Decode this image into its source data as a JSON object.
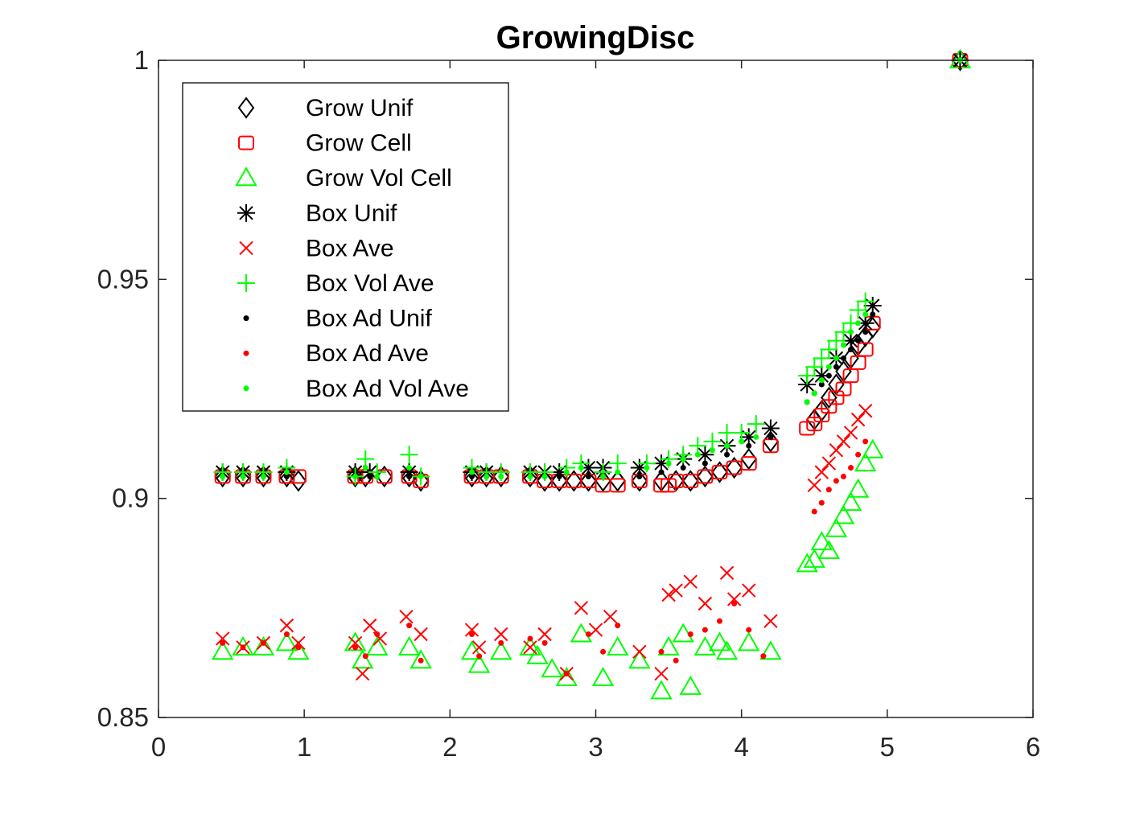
{
  "chart_data": {
    "type": "scatter",
    "title": "GrowingDisc",
    "xlabel": "",
    "ylabel": "",
    "xlim": [
      0,
      6
    ],
    "ylim": [
      0.85,
      1.0
    ],
    "xticks": [
      0,
      1,
      2,
      3,
      4,
      5,
      6
    ],
    "yticks": [
      0.85,
      0.9,
      0.95,
      1
    ],
    "xtick_labels": [
      "0",
      "1",
      "2",
      "3",
      "4",
      "5",
      "6"
    ],
    "ytick_labels": [
      "0.85",
      "0.9",
      "0.95",
      "1"
    ],
    "grid": false,
    "legend_position": "top-left",
    "series": [
      {
        "name": "Grow Unif",
        "marker": "diamond",
        "color": "#000000",
        "x": [
          0.44,
          0.58,
          0.72,
          0.88,
          0.96,
          1.35,
          1.42,
          1.55,
          1.72,
          1.8,
          2.15,
          2.25,
          2.35,
          2.55,
          2.65,
          2.75,
          2.85,
          2.95,
          3.05,
          3.15,
          3.3,
          3.45,
          3.55,
          3.65,
          3.75,
          3.85,
          3.95,
          4.05,
          4.2,
          4.5,
          4.55,
          4.6,
          4.65,
          4.7,
          4.75,
          4.8,
          4.85,
          4.9,
          5.5
        ],
        "y": [
          0.905,
          0.905,
          0.905,
          0.905,
          0.904,
          0.905,
          0.905,
          0.905,
          0.905,
          0.904,
          0.905,
          0.905,
          0.905,
          0.905,
          0.904,
          0.904,
          0.904,
          0.904,
          0.904,
          0.904,
          0.904,
          0.904,
          0.904,
          0.904,
          0.905,
          0.906,
          0.907,
          0.909,
          0.913,
          0.918,
          0.92,
          0.923,
          0.926,
          0.929,
          0.932,
          0.935,
          0.937,
          0.939,
          1.0
        ]
      },
      {
        "name": "Grow Cell",
        "marker": "square",
        "color": "#ff0000",
        "x": [
          0.44,
          0.58,
          0.72,
          0.88,
          0.96,
          1.35,
          1.42,
          1.55,
          1.72,
          1.8,
          2.15,
          2.25,
          2.35,
          2.55,
          2.65,
          2.75,
          2.85,
          2.95,
          3.05,
          3.15,
          3.3,
          3.45,
          3.5,
          3.55,
          3.65,
          3.75,
          3.85,
          3.95,
          4.05,
          4.2,
          4.45,
          4.5,
          4.55,
          4.6,
          4.65,
          4.7,
          4.75,
          4.8,
          4.85,
          4.9,
          5.5
        ],
        "y": [
          0.905,
          0.905,
          0.905,
          0.905,
          0.905,
          0.905,
          0.905,
          0.905,
          0.905,
          0.904,
          0.905,
          0.905,
          0.905,
          0.905,
          0.904,
          0.904,
          0.904,
          0.904,
          0.903,
          0.903,
          0.904,
          0.903,
          0.903,
          0.904,
          0.904,
          0.905,
          0.906,
          0.907,
          0.908,
          0.912,
          0.916,
          0.917,
          0.919,
          0.921,
          0.923,
          0.925,
          0.928,
          0.931,
          0.934,
          0.94,
          1.0
        ]
      },
      {
        "name": "Grow Vol Cell",
        "marker": "triangle",
        "color": "#00ff00",
        "x": [
          0.44,
          0.58,
          0.72,
          0.88,
          0.96,
          1.35,
          1.4,
          1.5,
          1.72,
          1.8,
          2.15,
          2.2,
          2.35,
          2.55,
          2.6,
          2.7,
          2.8,
          2.9,
          3.05,
          3.15,
          3.3,
          3.45,
          3.5,
          3.6,
          3.65,
          3.75,
          3.85,
          3.9,
          4.05,
          4.2,
          4.45,
          4.5,
          4.55,
          4.6,
          4.65,
          4.7,
          4.75,
          4.8,
          4.85,
          4.9,
          5.5
        ],
        "y": [
          0.865,
          0.866,
          0.866,
          0.867,
          0.865,
          0.867,
          0.863,
          0.866,
          0.866,
          0.863,
          0.865,
          0.862,
          0.865,
          0.866,
          0.864,
          0.861,
          0.859,
          0.869,
          0.859,
          0.866,
          0.863,
          0.856,
          0.866,
          0.869,
          0.857,
          0.866,
          0.867,
          0.865,
          0.867,
          0.865,
          0.885,
          0.886,
          0.89,
          0.888,
          0.893,
          0.896,
          0.899,
          0.902,
          0.908,
          0.911,
          1.0
        ]
      },
      {
        "name": "Box Unif",
        "marker": "asterisk",
        "color": "#000000",
        "x": [
          0.44,
          0.58,
          0.72,
          0.88,
          1.35,
          1.45,
          1.72,
          2.15,
          2.25,
          2.55,
          2.65,
          2.75,
          2.95,
          3.05,
          3.3,
          3.45,
          3.6,
          3.75,
          3.9,
          4.05,
          4.2,
          4.45,
          4.55,
          4.65,
          4.75,
          4.85,
          4.9,
          5.5
        ],
        "y": [
          0.906,
          0.906,
          0.906,
          0.906,
          0.906,
          0.906,
          0.906,
          0.906,
          0.906,
          0.906,
          0.906,
          0.906,
          0.907,
          0.907,
          0.907,
          0.908,
          0.909,
          0.91,
          0.912,
          0.914,
          0.916,
          0.926,
          0.928,
          0.932,
          0.936,
          0.94,
          0.944,
          1.0
        ]
      },
      {
        "name": "Box Ave",
        "marker": "x",
        "color": "#ff0000",
        "x": [
          0.44,
          0.58,
          0.72,
          0.88,
          0.96,
          1.35,
          1.4,
          1.45,
          1.52,
          1.7,
          1.8,
          2.15,
          2.2,
          2.35,
          2.55,
          2.65,
          2.8,
          2.9,
          3.0,
          3.1,
          3.3,
          3.45,
          3.5,
          3.55,
          3.65,
          3.75,
          3.9,
          3.95,
          4.05,
          4.2,
          4.5,
          4.55,
          4.6,
          4.65,
          4.7,
          4.75,
          4.8,
          4.85
        ],
        "y": [
          0.868,
          0.866,
          0.867,
          0.871,
          0.867,
          0.867,
          0.86,
          0.871,
          0.868,
          0.873,
          0.869,
          0.87,
          0.866,
          0.869,
          0.866,
          0.869,
          0.86,
          0.875,
          0.87,
          0.873,
          0.865,
          0.86,
          0.878,
          0.879,
          0.881,
          0.876,
          0.883,
          0.877,
          0.879,
          0.872,
          0.903,
          0.906,
          0.908,
          0.911,
          0.913,
          0.915,
          0.918,
          0.92
        ]
      },
      {
        "name": "Box Vol Ave",
        "marker": "plus",
        "color": "#00ff00",
        "x": [
          0.44,
          0.58,
          0.72,
          0.88,
          1.35,
          1.42,
          1.5,
          1.72,
          1.8,
          2.15,
          2.25,
          2.35,
          2.55,
          2.65,
          2.8,
          2.9,
          3.05,
          3.15,
          3.35,
          3.5,
          3.6,
          3.7,
          3.8,
          3.9,
          4.0,
          4.1,
          4.45,
          4.5,
          4.55,
          4.6,
          4.65,
          4.7,
          4.75,
          4.8,
          4.85
        ],
        "y": [
          0.906,
          0.906,
          0.906,
          0.907,
          0.905,
          0.909,
          0.906,
          0.91,
          0.905,
          0.907,
          0.906,
          0.906,
          0.906,
          0.906,
          0.907,
          0.908,
          0.906,
          0.908,
          0.908,
          0.909,
          0.91,
          0.912,
          0.913,
          0.915,
          0.915,
          0.917,
          0.928,
          0.93,
          0.932,
          0.934,
          0.936,
          0.938,
          0.94,
          0.943,
          0.945
        ]
      },
      {
        "name": "Box Ad Unif",
        "marker": "dot",
        "color": "#000000",
        "x": [
          0.44,
          0.58,
          0.72,
          0.88,
          1.35,
          1.45,
          1.72,
          2.15,
          2.25,
          2.55,
          2.65,
          2.75,
          2.95,
          3.05,
          3.3,
          3.45,
          3.6,
          3.75,
          3.9,
          4.05,
          4.2,
          4.45,
          4.5,
          4.55,
          4.6,
          4.65,
          4.7,
          4.75,
          4.8,
          4.85,
          4.9,
          5.5
        ],
        "y": [
          0.905,
          0.905,
          0.905,
          0.905,
          0.905,
          0.905,
          0.905,
          0.905,
          0.905,
          0.905,
          0.905,
          0.905,
          0.905,
          0.905,
          0.905,
          0.906,
          0.907,
          0.908,
          0.91,
          0.912,
          0.914,
          0.922,
          0.924,
          0.926,
          0.928,
          0.93,
          0.932,
          0.934,
          0.936,
          0.938,
          0.942,
          1.0
        ]
      },
      {
        "name": "Box Ad Ave",
        "marker": "dot",
        "color": "#ff0000",
        "x": [
          0.44,
          0.58,
          0.72,
          0.88,
          0.96,
          1.35,
          1.42,
          1.5,
          1.72,
          1.8,
          2.15,
          2.2,
          2.35,
          2.55,
          2.65,
          2.8,
          2.95,
          3.05,
          3.15,
          3.45,
          3.55,
          3.65,
          3.75,
          3.85,
          3.95,
          4.05,
          4.15,
          4.5,
          4.55,
          4.6,
          4.65,
          4.7,
          4.75,
          4.8,
          4.85
        ],
        "y": [
          0.867,
          0.866,
          0.867,
          0.869,
          0.866,
          0.866,
          0.864,
          0.869,
          0.871,
          0.863,
          0.869,
          0.864,
          0.867,
          0.868,
          0.867,
          0.86,
          0.869,
          0.865,
          0.871,
          0.865,
          0.863,
          0.869,
          0.87,
          0.872,
          0.876,
          0.87,
          0.864,
          0.897,
          0.899,
          0.902,
          0.904,
          0.905,
          0.907,
          0.91,
          0.913
        ]
      },
      {
        "name": "Box Ad Vol Ave",
        "marker": "dot",
        "color": "#00ff00",
        "x": [
          0.44,
          0.58,
          0.72,
          0.88,
          1.35,
          1.42,
          1.5,
          1.72,
          1.8,
          2.15,
          2.25,
          2.35,
          2.55,
          2.65,
          2.8,
          2.9,
          3.05,
          3.15,
          3.35,
          3.5,
          3.6,
          3.7,
          3.8,
          3.9,
          4.0,
          4.1,
          4.45,
          4.5,
          4.55,
          4.6,
          4.65,
          4.7,
          4.75,
          4.8,
          4.85,
          5.5
        ],
        "y": [
          0.905,
          0.905,
          0.905,
          0.906,
          0.905,
          0.907,
          0.905,
          0.907,
          0.905,
          0.906,
          0.905,
          0.905,
          0.905,
          0.905,
          0.906,
          0.907,
          0.905,
          0.906,
          0.907,
          0.908,
          0.909,
          0.91,
          0.911,
          0.912,
          0.913,
          0.914,
          0.922,
          0.924,
          0.927,
          0.93,
          0.932,
          0.935,
          0.938,
          0.94,
          0.942,
          1.0
        ]
      }
    ]
  }
}
